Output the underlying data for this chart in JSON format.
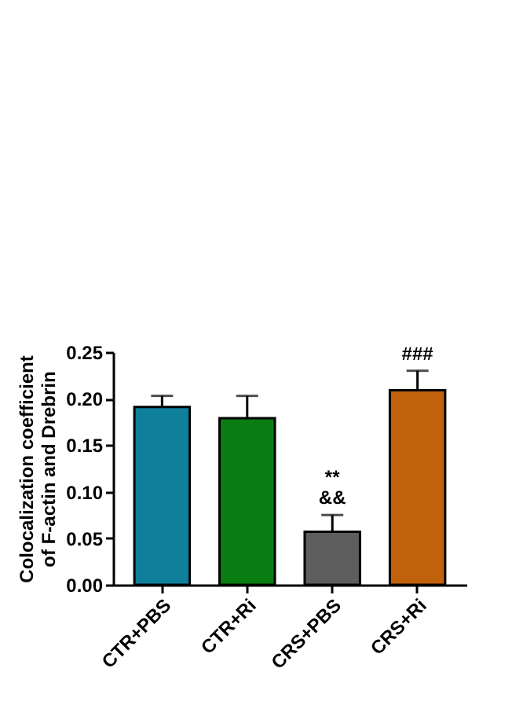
{
  "chart_data": {
    "type": "bar",
    "ylabel": "Colocalization coefficient\nof F-actin and Drebrin",
    "categories": [
      "CTR+PBS",
      "CTR+Ri",
      "CRS+PBS",
      "CRS+Ri"
    ],
    "values": [
      0.191,
      0.179,
      0.057,
      0.209
    ],
    "errors": [
      [
        0.191,
        0.203
      ],
      [
        0.179,
        0.203
      ],
      [
        0.057,
        0.075
      ],
      [
        0.209,
        0.23
      ]
    ],
    "colors": [
      "#0f7f9b",
      "#0a7d12",
      "#5e5e5e",
      "#c0610c"
    ],
    "ylim": [
      0,
      0.25
    ],
    "yticks": [
      {
        "value": 0,
        "label": "0.00"
      },
      {
        "value": 0.05,
        "label": "0.05"
      },
      {
        "value": 0.1,
        "label": "0.10"
      },
      {
        "value": 0.15,
        "label": "0.15"
      },
      {
        "value": 0.2,
        "label": "0.20"
      },
      {
        "value": 0.25,
        "label": "0.25"
      }
    ],
    "grid": false,
    "annotations": [
      "**",
      "&&",
      "###"
    ]
  }
}
